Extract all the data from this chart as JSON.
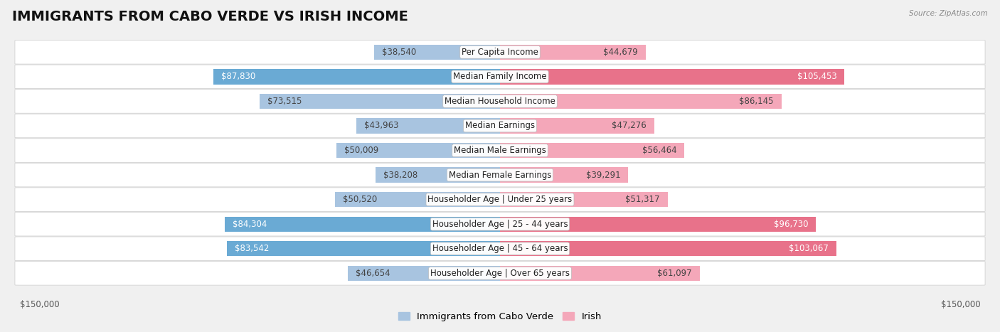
{
  "title": "IMMIGRANTS FROM CABO VERDE VS IRISH INCOME",
  "source": "Source: ZipAtlas.com",
  "categories": [
    "Per Capita Income",
    "Median Family Income",
    "Median Household Income",
    "Median Earnings",
    "Median Male Earnings",
    "Median Female Earnings",
    "Householder Age | Under 25 years",
    "Householder Age | 25 - 44 years",
    "Householder Age | 45 - 64 years",
    "Householder Age | Over 65 years"
  ],
  "cabo_verde_values": [
    38540,
    87830,
    73515,
    43963,
    50009,
    38208,
    50520,
    84304,
    83542,
    46654
  ],
  "irish_values": [
    44679,
    105453,
    86145,
    47276,
    56464,
    39291,
    51317,
    96730,
    103067,
    61097
  ],
  "cabo_verde_labels": [
    "$38,540",
    "$87,830",
    "$73,515",
    "$43,963",
    "$50,009",
    "$38,208",
    "$50,520",
    "$84,304",
    "$83,542",
    "$46,654"
  ],
  "irish_labels": [
    "$44,679",
    "$105,453",
    "$86,145",
    "$47,276",
    "$56,464",
    "$39,291",
    "$51,317",
    "$96,730",
    "$103,067",
    "$61,097"
  ],
  "cabo_verde_color_light": "#a8c4e0",
  "cabo_verde_color_dark": "#6aaad4",
  "irish_color_light": "#f4a7b9",
  "irish_color_dark": "#e8728a",
  "max_value": 150000,
  "background_color": "#f0f0f0",
  "row_bg_color": "#ffffff",
  "title_fontsize": 14,
  "label_fontsize": 8.5,
  "legend_fontsize": 9.5,
  "axis_label": "$150,000",
  "cabo_verde_dark_threshold": 75000,
  "irish_dark_threshold": 90000
}
